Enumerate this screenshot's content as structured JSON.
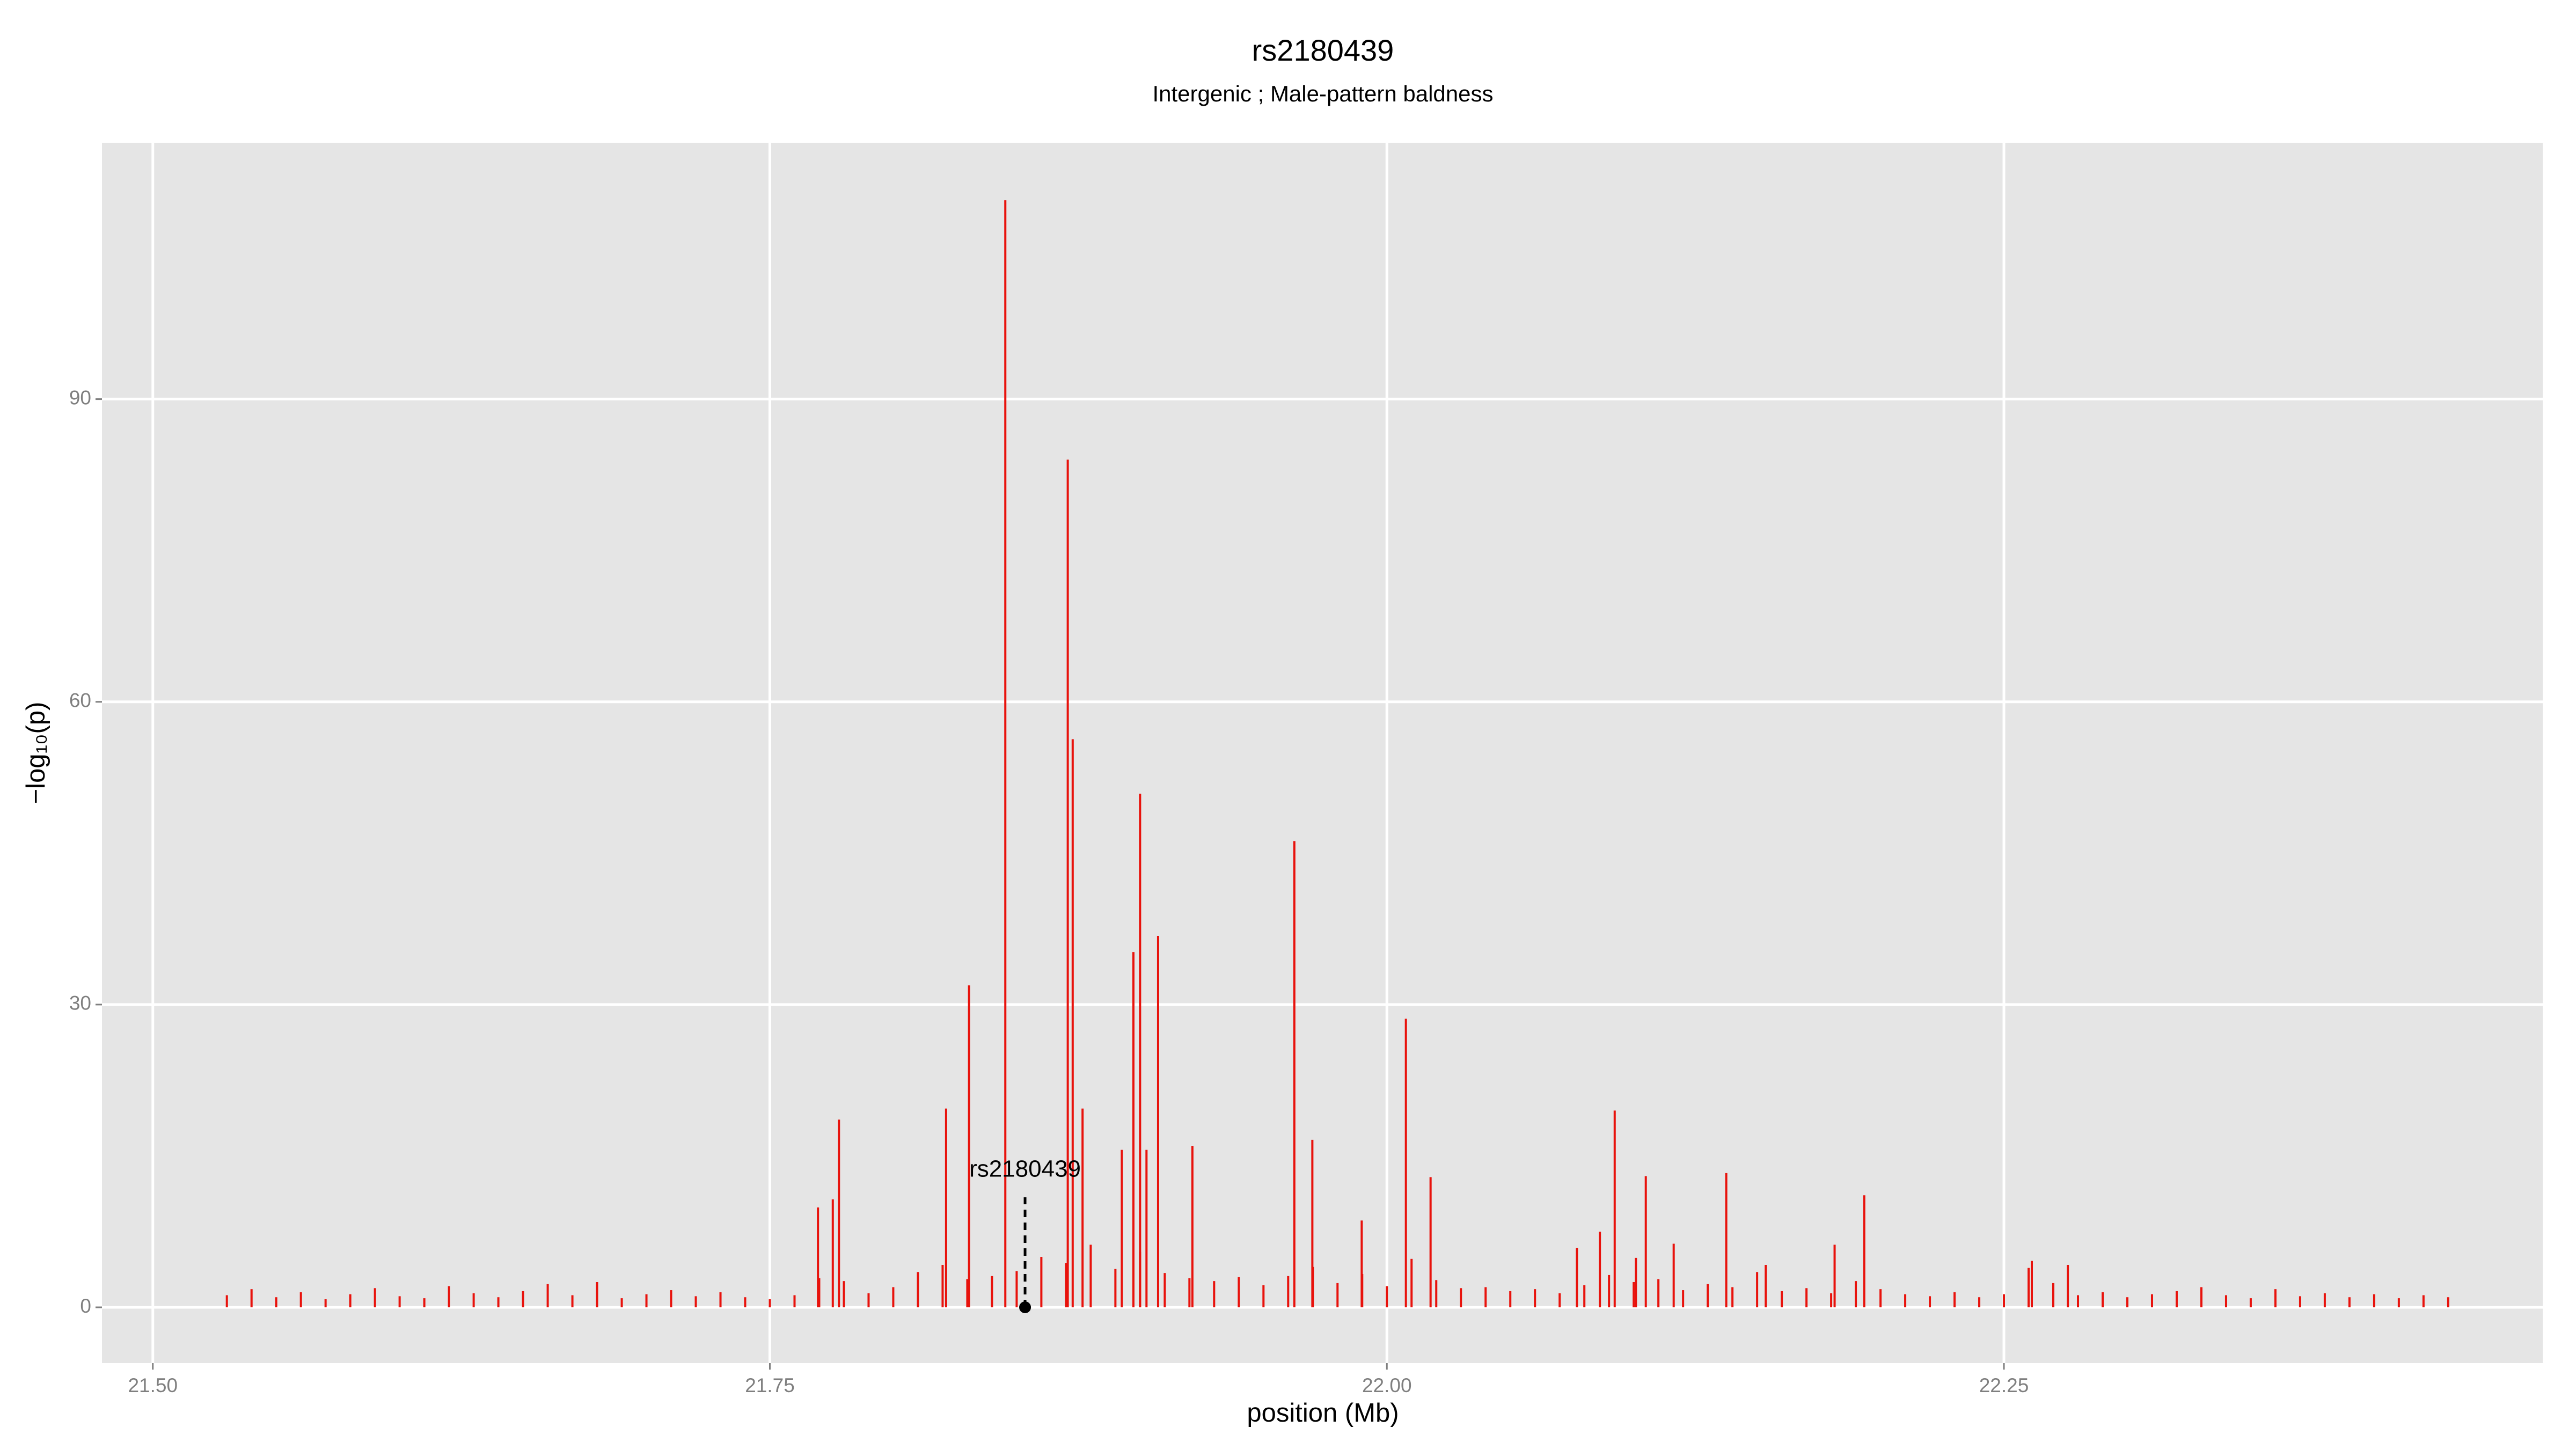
{
  "chart_data": {
    "type": "spike",
    "title": "rs2180439",
    "subtitle": "Intergenic ; Male-pattern baldness",
    "x_label": "position (Mb)",
    "y_label": "−log₁₀(p)",
    "xlim": [
      21.4794,
      22.4683
    ],
    "ylim": [
      -5.53,
      115.4
    ],
    "xticks": [
      {
        "value": 21.5,
        "label": "21.50"
      },
      {
        "value": 21.75,
        "label": "21.75"
      },
      {
        "value": 22.0,
        "label": "22.00"
      },
      {
        "value": 22.25,
        "label": "22.25"
      }
    ],
    "yticks": [
      0,
      30,
      60,
      90
    ],
    "grid": true,
    "series": [
      {
        "color": "#e8120c",
        "x": [
          21.53,
          21.54,
          21.55,
          21.56,
          21.57,
          21.58,
          21.59,
          21.6,
          21.61,
          21.62,
          21.63,
          21.64,
          21.65,
          21.66,
          21.67,
          21.68,
          21.69,
          21.7,
          21.71,
          21.72,
          21.73,
          21.74,
          21.75,
          21.76,
          21.77,
          21.78,
          21.79,
          21.8,
          21.81,
          21.82,
          21.83,
          21.84,
          21.85,
          21.86,
          21.87,
          21.88,
          21.89,
          21.9,
          21.91,
          21.92,
          21.93,
          21.94,
          21.95,
          21.96,
          21.97,
          21.98,
          21.99,
          22.0,
          22.01,
          22.02,
          22.03,
          22.04,
          22.05,
          22.06,
          22.07,
          22.08,
          22.09,
          22.1,
          22.11,
          22.12,
          22.13,
          22.14,
          22.15,
          22.16,
          22.17,
          22.18,
          22.19,
          22.2,
          22.21,
          22.22,
          22.23,
          22.24,
          22.25,
          22.26,
          22.27,
          22.28,
          22.29,
          22.3,
          22.31,
          22.32,
          22.33,
          22.34,
          22.35,
          22.36,
          22.37,
          22.38,
          22.39,
          22.4,
          22.41,
          22.42,
          22.43,
          21.7695,
          21.7755,
          21.778,
          21.8214,
          21.8307,
          21.8454,
          21.8707,
          21.8727,
          21.8767,
          21.8926,
          21.8973,
          21.9,
          21.9026,
          21.9073,
          21.9212,
          21.9625,
          21.9698,
          21.9898,
          22.0077,
          22.0177,
          22.077,
          22.0863,
          22.0923,
          22.1009,
          22.1049,
          22.1162,
          22.1375,
          22.1535,
          22.1814,
          22.1934,
          22.2613,
          22.2759
        ],
        "values": [
          1.2,
          1.8,
          1.0,
          1.5,
          0.8,
          1.3,
          1.9,
          1.1,
          0.9,
          2.1,
          1.4,
          1.0,
          1.6,
          2.3,
          1.2,
          2.5,
          0.9,
          1.3,
          1.7,
          1.1,
          1.5,
          1.0,
          0.8,
          1.2,
          2.9,
          2.6,
          1.4,
          2.0,
          3.5,
          4.2,
          2.8,
          3.1,
          3.6,
          5.0,
          4.4,
          6.2,
          3.8,
          5.5,
          3.4,
          2.9,
          2.6,
          3.0,
          2.2,
          3.1,
          4.0,
          2.4,
          3.3,
          2.1,
          4.8,
          2.7,
          1.9,
          2.0,
          1.6,
          1.8,
          1.4,
          2.2,
          3.2,
          2.5,
          2.8,
          1.7,
          2.3,
          2.0,
          3.5,
          1.6,
          1.9,
          1.4,
          2.6,
          1.8,
          1.3,
          1.1,
          1.5,
          1.0,
          1.3,
          3.9,
          2.4,
          1.2,
          1.5,
          1.0,
          1.3,
          1.6,
          2.0,
          1.2,
          0.9,
          1.8,
          1.1,
          1.4,
          1.0,
          1.3,
          0.9,
          1.2,
          1.0,
          9.9,
          10.7,
          18.6,
          19.7,
          31.9,
          109.7,
          84.0,
          56.3,
          19.7,
          15.6,
          35.2,
          50.9,
          15.6,
          36.8,
          16.0,
          46.2,
          16.6,
          8.6,
          28.6,
          12.9,
          5.9,
          7.5,
          19.5,
          4.9,
          13.0,
          6.3,
          13.3,
          4.2,
          6.2,
          11.1,
          4.6,
          4.2
        ]
      }
    ],
    "annotation": {
      "text": "rs2180439",
      "x": 21.8534,
      "y": 0
    }
  }
}
